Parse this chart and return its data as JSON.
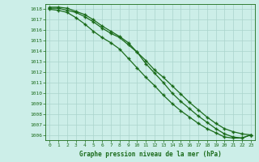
{
  "x": [
    0,
    1,
    2,
    3,
    4,
    5,
    6,
    7,
    8,
    9,
    10,
    11,
    12,
    13,
    14,
    15,
    16,
    17,
    18,
    19,
    20,
    21,
    22,
    23
  ],
  "line1": [
    1018.1,
    1018.1,
    1017.9,
    1017.7,
    1017.3,
    1016.8,
    1016.2,
    1015.7,
    1015.3,
    1014.6,
    1013.9,
    1013.1,
    1012.2,
    1011.5,
    1010.7,
    1009.9,
    1009.1,
    1008.4,
    1007.7,
    1007.1,
    1006.6,
    1006.3,
    1006.1,
    1006.0
  ],
  "line2": [
    1018.2,
    1018.2,
    1018.1,
    1017.8,
    1017.5,
    1017.0,
    1016.4,
    1015.9,
    1015.4,
    1014.8,
    1013.9,
    1012.8,
    1011.9,
    1011.0,
    1010.0,
    1009.2,
    1008.5,
    1007.8,
    1007.2,
    1006.6,
    1006.1,
    1005.8,
    1005.7,
    1006.0
  ],
  "line3": [
    1018.0,
    1017.9,
    1017.7,
    1017.2,
    1016.6,
    1015.9,
    1015.3,
    1014.8,
    1014.2,
    1013.3,
    1012.4,
    1011.5,
    1010.7,
    1009.8,
    1009.0,
    1008.3,
    1007.7,
    1007.1,
    1006.6,
    1006.2,
    1005.8,
    1005.7,
    1005.7,
    1006.0
  ],
  "line_color": "#1a6b1a",
  "bg_color": "#cceee8",
  "grid_color": "#aad4cc",
  "title": "Graphe pression niveau de la mer (hPa)",
  "ylim_min": 1005.5,
  "ylim_max": 1018.5,
  "ytick_min": 1006,
  "ytick_max": 1018,
  "xticks": [
    0,
    1,
    2,
    3,
    4,
    5,
    6,
    7,
    8,
    9,
    10,
    11,
    12,
    13,
    14,
    15,
    16,
    17,
    18,
    19,
    20,
    21,
    22,
    23
  ],
  "marker": "+"
}
